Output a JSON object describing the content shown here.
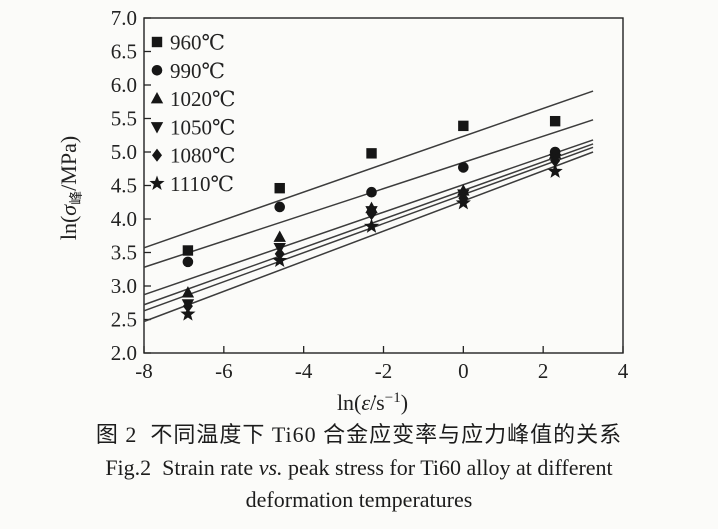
{
  "chart_data": {
    "type": "scatter",
    "title": "",
    "xlabel": "ln(ε̇/s⁻¹)",
    "ylabel": "ln(σ峰/MPa)",
    "xlim": [
      -8,
      4
    ],
    "ylim": [
      2.0,
      7.0
    ],
    "xticks": [
      -8,
      -6,
      -4,
      -2,
      0,
      2,
      4
    ],
    "yticks": [
      2.0,
      2.5,
      3.0,
      3.5,
      4.0,
      4.5,
      5.0,
      5.5,
      6.0,
      6.5,
      7.0
    ],
    "grid": false,
    "legend_position": "upper-left-inside",
    "marker_color": "#161616",
    "line_color": "#3c3c3c",
    "x": [
      -6.9,
      -4.6,
      -2.3,
      0,
      2.3
    ],
    "series": [
      {
        "name": "960℃",
        "marker": "square",
        "values": [
          3.53,
          4.46,
          4.98,
          5.39,
          5.46
        ],
        "fit": {
          "x1": -8,
          "y1": 3.57,
          "x2": 3.25,
          "y2": 5.91
        }
      },
      {
        "name": "990℃",
        "marker": "circle",
        "values": [
          3.36,
          4.18,
          4.4,
          4.77,
          5.0
        ],
        "fit": {
          "x1": -8,
          "y1": 3.28,
          "x2": 3.25,
          "y2": 5.48
        }
      },
      {
        "name": "1020℃",
        "marker": "triangle-up",
        "values": [
          2.9,
          3.73,
          4.16,
          4.42,
          4.97
        ],
        "fit": {
          "x1": -8,
          "y1": 2.87,
          "x2": 3.25,
          "y2": 5.18
        }
      },
      {
        "name": "1050℃",
        "marker": "triangle-down",
        "values": [
          2.73,
          3.57,
          4.12,
          4.37,
          4.9
        ],
        "fit": {
          "x1": -8,
          "y1": 2.72,
          "x2": 3.25,
          "y2": 5.12
        }
      },
      {
        "name": "1080℃",
        "marker": "diamond",
        "values": [
          2.7,
          3.48,
          4.08,
          4.31,
          4.87
        ],
        "fit": {
          "x1": -8,
          "y1": 2.63,
          "x2": 3.25,
          "y2": 5.07
        }
      },
      {
        "name": "1110℃",
        "marker": "star",
        "values": [
          2.58,
          3.38,
          3.89,
          4.24,
          4.71
        ],
        "fit": {
          "x1": -8,
          "y1": 2.47,
          "x2": 3.25,
          "y2": 5.0
        }
      }
    ],
    "axis_label_parts": {
      "x_pre": "ln(",
      "x_var": "ε̇",
      "x_mid": "/s",
      "x_sup": "−1",
      "x_post": ")",
      "y_pre": "ln(",
      "y_var": "σ",
      "y_sub": "峰",
      "y_post": "/MPa)"
    }
  },
  "caption": {
    "zh": "图 2  不同温度下 Ti60 合金应变率与应力峰值的关系",
    "en_prefix": "Fig.2  Strain rate ",
    "en_vs": "vs.",
    "en_suffix": " peak stress for Ti60 alloy at different",
    "en_line2": "deformation temperatures"
  }
}
